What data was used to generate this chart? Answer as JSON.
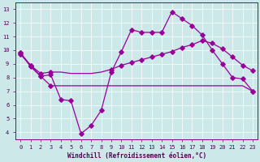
{
  "xlabel": "Windchill (Refroidissement éolien,°C)",
  "background_color": "#cce8e8",
  "line_color": "#990099",
  "grid_color": "#aacccc",
  "xlim": [
    -0.5,
    23.5
  ],
  "ylim": [
    3.5,
    13.5
  ],
  "xticks": [
    0,
    1,
    2,
    3,
    4,
    5,
    6,
    7,
    8,
    9,
    10,
    11,
    12,
    13,
    14,
    15,
    16,
    17,
    18,
    19,
    20,
    21,
    22,
    23
  ],
  "yticks": [
    4,
    5,
    6,
    7,
    8,
    9,
    10,
    11,
    12,
    13
  ],
  "line1_x": [
    0,
    1,
    2,
    3,
    4,
    5,
    6,
    7,
    8,
    9,
    10,
    11,
    12,
    13,
    14,
    15,
    16,
    17,
    18,
    19,
    20,
    21,
    22,
    23
  ],
  "line1_y": [
    9.8,
    8.9,
    8.1,
    8.2,
    6.4,
    6.3,
    3.9,
    4.5,
    5.6,
    8.4,
    9.9,
    11.5,
    11.3,
    11.3,
    11.3,
    12.8,
    12.3,
    11.8,
    11.1,
    10.0,
    9.0,
    8.0,
    7.9,
    7.0
  ],
  "line2_x": [
    0,
    1,
    2,
    3,
    4,
    5,
    6,
    7,
    8,
    9,
    10,
    11,
    12,
    13,
    14,
    15,
    16,
    17,
    18,
    19,
    20,
    21,
    22,
    23
  ],
  "line2_y": [
    9.7,
    8.9,
    8.3,
    8.4,
    8.4,
    8.3,
    8.3,
    8.3,
    8.4,
    8.6,
    8.9,
    9.1,
    9.3,
    9.5,
    9.7,
    9.9,
    10.2,
    10.4,
    10.7,
    10.5,
    10.1,
    9.5,
    8.9,
    8.5
  ],
  "line3_x": [
    0,
    1,
    2,
    3,
    4,
    5,
    6,
    7,
    8,
    9,
    10,
    11,
    12,
    13,
    14,
    15,
    16,
    17,
    18,
    19,
    20,
    21,
    22,
    23
  ],
  "line3_y": [
    9.8,
    8.8,
    8.1,
    7.4,
    7.4,
    7.4,
    7.4,
    7.4,
    7.4,
    7.4,
    7.4,
    7.4,
    7.4,
    7.4,
    7.4,
    7.4,
    7.4,
    7.4,
    7.4,
    7.4,
    7.4,
    7.4,
    7.4,
    7.0
  ]
}
